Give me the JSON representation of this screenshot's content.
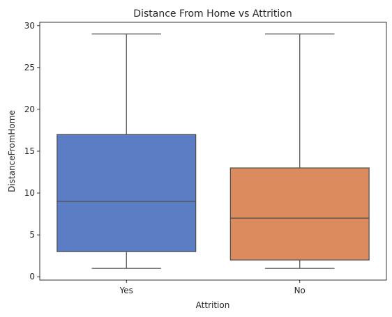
{
  "chart_data": {
    "type": "box",
    "title": "Distance From Home vs Attrition",
    "xlabel": "Attrition",
    "ylabel": "DistanceFromHome",
    "categories": [
      "Yes",
      "No"
    ],
    "boxes": [
      {
        "category": "Yes",
        "min": 1,
        "q1": 3,
        "median": 9,
        "q3": 17,
        "max": 29,
        "color": "#5a7dc3"
      },
      {
        "category": "No",
        "min": 1,
        "q1": 2,
        "median": 7,
        "q3": 13,
        "max": 29,
        "color": "#dc8b5f"
      }
    ],
    "yticks": [
      0,
      5,
      10,
      15,
      20,
      25,
      30
    ],
    "ylim": [
      -0.4,
      30.4
    ],
    "grid": false,
    "line_color": "#4c4c4c"
  }
}
